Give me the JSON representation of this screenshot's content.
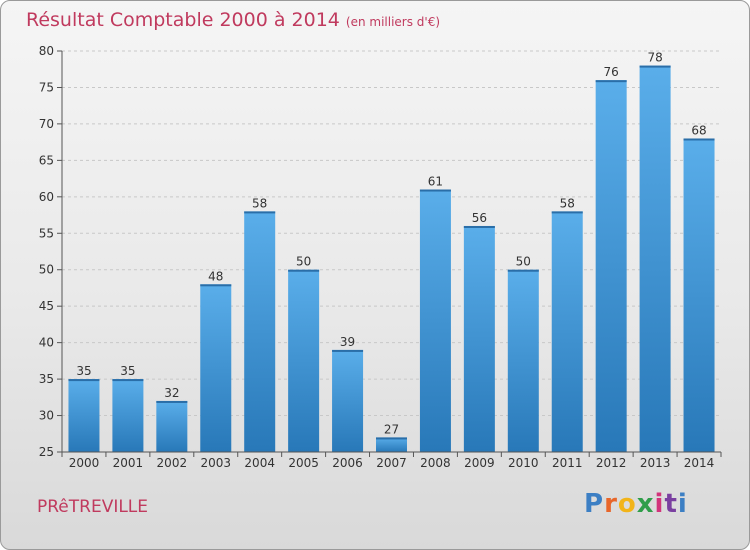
{
  "title": "Résultat Comptable 2000 à 2014",
  "unit": "(en milliers d'€)",
  "location": "PRêTREVILLE",
  "logo": {
    "text": "Proxiti",
    "colors": [
      "#3c7fc4",
      "#e8662a",
      "#f2b419",
      "#2f9e4a",
      "#d2347b",
      "#7a3fa0",
      "#3c7fc4"
    ]
  },
  "chart_data": {
    "type": "bar",
    "categories": [
      "2000",
      "2001",
      "2002",
      "2003",
      "2004",
      "2005",
      "2006",
      "2007",
      "2008",
      "2009",
      "2010",
      "2011",
      "2012",
      "2013",
      "2014"
    ],
    "values": [
      35,
      35,
      32,
      48,
      58,
      50,
      39,
      27,
      61,
      56,
      50,
      58,
      76,
      78,
      68
    ],
    "ylim": [
      25,
      80
    ],
    "yticks": [
      25,
      30,
      35,
      40,
      45,
      50,
      55,
      60,
      65,
      70,
      75,
      80
    ],
    "grid": true,
    "bar_color": "#3a93d8"
  }
}
